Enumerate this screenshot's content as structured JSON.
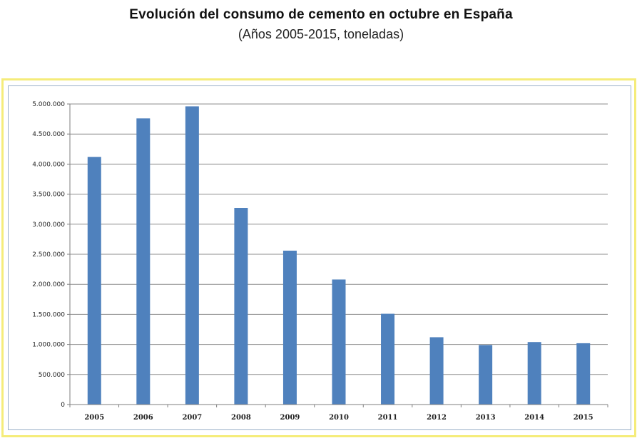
{
  "chart_data": {
    "type": "bar",
    "title": "Evolución del consumo de cemento en octubre en España",
    "subtitle": "(Años 2005-2015, toneladas)",
    "categories": [
      "2005",
      "2006",
      "2007",
      "2008",
      "2009",
      "2010",
      "2011",
      "2012",
      "2013",
      "2014",
      "2015"
    ],
    "values": [
      4120000,
      4760000,
      4960000,
      3270000,
      2560000,
      2080000,
      1510000,
      1120000,
      990000,
      1040000,
      1020000
    ],
    "ylim": [
      0,
      5000000
    ],
    "yticks": [
      0,
      500000,
      1000000,
      1500000,
      2000000,
      2500000,
      3000000,
      3500000,
      4000000,
      4500000,
      5000000
    ],
    "ytick_labels": [
      "0",
      "500.000",
      "1.000.000",
      "1.500.000",
      "2.000.000",
      "2.500.000",
      "3.000.000",
      "3.500.000",
      "4.000.000",
      "4.500.000",
      "5.000.000"
    ],
    "grid": true,
    "legend": "none",
    "bar_color": "#4f81bd",
    "grid_color": "#8c8c8c",
    "frame_color": "#f5ec7a"
  }
}
